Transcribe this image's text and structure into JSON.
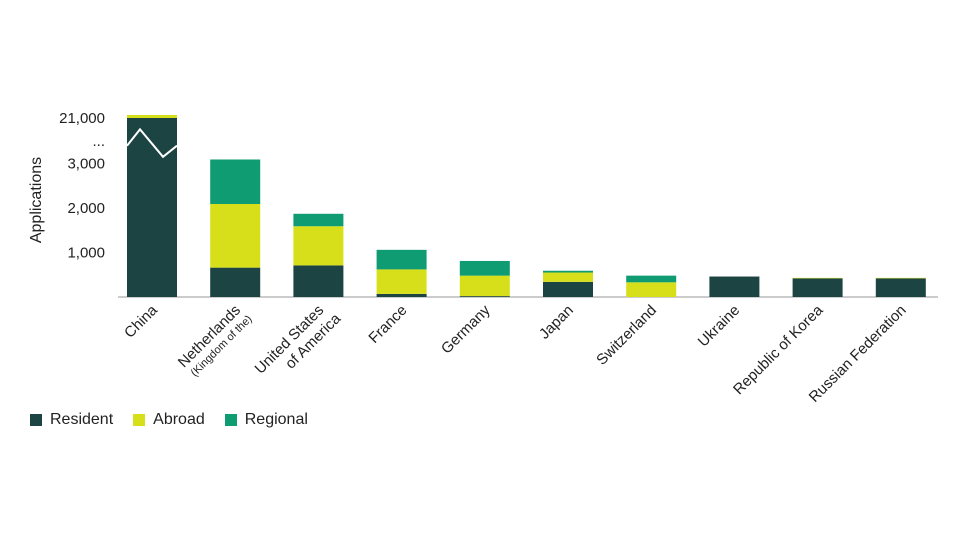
{
  "chart_data": {
    "type": "bar",
    "stacked": true,
    "ylabel": "Applications",
    "y_ticks": [
      "1,000",
      "2,000",
      "3,000",
      "...",
      "21,000"
    ],
    "y_break": true,
    "categories": [
      {
        "name": "China"
      },
      {
        "name": "Netherlands",
        "sub": "(Kingdom of the)"
      },
      {
        "name": "United States",
        "name2": "of America"
      },
      {
        "name": "France"
      },
      {
        "name": "Germany"
      },
      {
        "name": "Japan"
      },
      {
        "name": "Switzerland"
      },
      {
        "name": "Ukraine"
      },
      {
        "name": "Republic of Korea"
      },
      {
        "name": "Russian Federation"
      }
    ],
    "series": [
      {
        "name": "Resident",
        "color": "#1c4442",
        "values": [
          20880,
          660,
          710,
          70,
          20,
          340,
          0,
          460,
          420,
          420
        ]
      },
      {
        "name": "Abroad",
        "color": "#d7df1a",
        "values": [
          90,
          1430,
          880,
          550,
          460,
          210,
          330,
          0,
          10,
          10
        ]
      },
      {
        "name": "Regional",
        "color": "#0f9c73",
        "values": [
          0,
          1000,
          280,
          440,
          330,
          40,
          150,
          0,
          0,
          0
        ]
      }
    ],
    "legend_position": "bottom-left"
  }
}
